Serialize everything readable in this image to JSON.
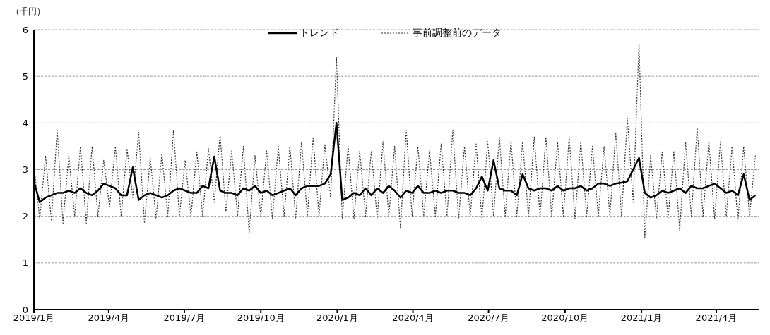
{
  "chart_data": {
    "type": "line",
    "ylabel": "（千円）",
    "x": [
      "2019-01-01",
      "2019-01-08",
      "2019-01-15",
      "2019-01-22",
      "2019-01-29",
      "2019-02-05",
      "2019-02-12",
      "2019-02-19",
      "2019-02-26",
      "2019-03-05",
      "2019-03-12",
      "2019-03-19",
      "2019-03-26",
      "2019-04-02",
      "2019-04-09",
      "2019-04-16",
      "2019-04-23",
      "2019-04-30",
      "2019-05-07",
      "2019-05-14",
      "2019-05-21",
      "2019-05-28",
      "2019-06-04",
      "2019-06-11",
      "2019-06-18",
      "2019-06-25",
      "2019-07-02",
      "2019-07-09",
      "2019-07-16",
      "2019-07-23",
      "2019-07-30",
      "2019-08-06",
      "2019-08-13",
      "2019-08-20",
      "2019-08-27",
      "2019-09-03",
      "2019-09-10",
      "2019-09-17",
      "2019-09-24",
      "2019-10-01",
      "2019-10-08",
      "2019-10-15",
      "2019-10-22",
      "2019-10-29",
      "2019-11-05",
      "2019-11-12",
      "2019-11-19",
      "2019-11-26",
      "2019-12-03",
      "2019-12-10",
      "2019-12-17",
      "2019-12-24",
      "2019-12-31",
      "2020-01-07",
      "2020-01-14",
      "2020-01-21",
      "2020-01-28",
      "2020-02-04",
      "2020-02-11",
      "2020-02-18",
      "2020-02-25",
      "2020-03-03",
      "2020-03-10",
      "2020-03-17",
      "2020-03-24",
      "2020-03-31",
      "2020-04-07",
      "2020-04-14",
      "2020-04-21",
      "2020-04-28",
      "2020-05-05",
      "2020-05-12",
      "2020-05-19",
      "2020-05-26",
      "2020-06-02",
      "2020-06-09",
      "2020-06-16",
      "2020-06-23",
      "2020-06-30",
      "2020-07-07",
      "2020-07-14",
      "2020-07-21",
      "2020-07-28",
      "2020-08-04",
      "2020-08-11",
      "2020-08-18",
      "2020-08-25",
      "2020-09-01",
      "2020-09-08",
      "2020-09-15",
      "2020-09-22",
      "2020-09-29",
      "2020-10-06",
      "2020-10-13",
      "2020-10-20",
      "2020-10-27",
      "2020-11-03",
      "2020-11-10",
      "2020-11-17",
      "2020-11-24",
      "2020-12-01",
      "2020-12-08",
      "2020-12-15",
      "2020-12-22",
      "2020-12-29",
      "2021-01-05",
      "2021-01-12",
      "2021-01-19",
      "2021-01-26",
      "2021-02-02",
      "2021-02-09",
      "2021-02-16",
      "2021-02-23",
      "2021-03-02",
      "2021-03-09",
      "2021-03-16",
      "2021-03-23",
      "2021-03-30",
      "2021-04-06",
      "2021-04-13",
      "2021-04-20",
      "2021-04-27",
      "2021-05-04",
      "2021-05-11",
      "2021-05-18"
    ],
    "series": [
      {
        "name": "トレンド",
        "color": "#000000",
        "line_style": "solid",
        "values": [
          2.75,
          2.3,
          2.4,
          2.45,
          2.5,
          2.5,
          2.55,
          2.5,
          2.6,
          2.5,
          2.45,
          2.55,
          2.7,
          2.65,
          2.6,
          2.45,
          2.45,
          3.05,
          2.35,
          2.45,
          2.5,
          2.45,
          2.4,
          2.45,
          2.55,
          2.6,
          2.55,
          2.5,
          2.5,
          2.65,
          2.6,
          3.28,
          2.55,
          2.5,
          2.5,
          2.45,
          2.6,
          2.55,
          2.65,
          2.5,
          2.55,
          2.45,
          2.5,
          2.55,
          2.6,
          2.45,
          2.6,
          2.65,
          2.65,
          2.65,
          2.7,
          2.9,
          4.0,
          2.35,
          2.4,
          2.5,
          2.45,
          2.6,
          2.45,
          2.6,
          2.5,
          2.65,
          2.55,
          2.4,
          2.55,
          2.5,
          2.65,
          2.5,
          2.5,
          2.55,
          2.5,
          2.55,
          2.55,
          2.5,
          2.5,
          2.45,
          2.6,
          2.85,
          2.55,
          3.2,
          2.6,
          2.55,
          2.55,
          2.45,
          2.9,
          2.6,
          2.55,
          2.6,
          2.6,
          2.55,
          2.65,
          2.55,
          2.6,
          2.6,
          2.65,
          2.55,
          2.6,
          2.7,
          2.7,
          2.65,
          2.7,
          2.72,
          2.75,
          3.0,
          3.25,
          2.5,
          2.4,
          2.45,
          2.55,
          2.5,
          2.55,
          2.6,
          2.5,
          2.65,
          2.6,
          2.6,
          2.65,
          2.7,
          2.6,
          2.5,
          2.55,
          2.45,
          2.9,
          2.35,
          2.45
        ]
      },
      {
        "name": "事前調整前のデータ",
        "color": "#333333",
        "line_style": "dotted",
        "values": [
          3.1,
          1.95,
          3.3,
          1.9,
          3.85,
          1.85,
          3.3,
          2.0,
          3.5,
          1.85,
          3.5,
          2.0,
          3.2,
          2.2,
          3.5,
          2.0,
          3.45,
          2.4,
          3.8,
          1.85,
          3.25,
          1.95,
          3.35,
          2.0,
          3.85,
          2.0,
          3.2,
          2.0,
          3.4,
          2.0,
          3.45,
          2.3,
          3.75,
          2.1,
          3.4,
          2.0,
          3.5,
          1.65,
          3.3,
          2.0,
          3.4,
          1.95,
          3.5,
          2.0,
          3.5,
          1.95,
          3.6,
          2.0,
          3.7,
          2.0,
          3.55,
          2.4,
          5.4,
          1.95,
          3.5,
          1.95,
          3.4,
          2.0,
          3.4,
          1.95,
          3.6,
          2.0,
          3.5,
          1.75,
          3.85,
          2.0,
          3.5,
          2.0,
          3.4,
          2.0,
          3.55,
          2.0,
          3.85,
          1.95,
          3.5,
          2.0,
          3.55,
          1.95,
          3.6,
          2.0,
          3.7,
          2.0,
          3.6,
          2.0,
          3.6,
          2.0,
          3.7,
          2.0,
          3.7,
          2.0,
          3.6,
          2.0,
          3.7,
          1.95,
          3.6,
          2.0,
          3.5,
          2.0,
          3.5,
          2.0,
          3.8,
          2.0,
          4.1,
          2.3,
          5.7,
          1.55,
          3.3,
          1.95,
          3.4,
          1.95,
          3.4,
          1.7,
          3.6,
          2.0,
          3.9,
          2.0,
          3.6,
          1.95,
          3.6,
          2.0,
          3.5,
          1.9,
          3.5,
          2.0,
          3.3
        ]
      }
    ],
    "xlim": [
      "2019-01-01",
      "2021-05-22"
    ],
    "xticks": [
      {
        "value": "2019-01",
        "label": "2019/1月"
      },
      {
        "value": "2019-04",
        "label": "2019/4月"
      },
      {
        "value": "2019-07",
        "label": "2019/7月"
      },
      {
        "value": "2019-10",
        "label": "2019/10月"
      },
      {
        "value": "2020-01",
        "label": "2020/1月"
      },
      {
        "value": "2020-04",
        "label": "2020/4月"
      },
      {
        "value": "2020-07",
        "label": "2020/7月"
      },
      {
        "value": "2020-10",
        "label": "2020/10月"
      },
      {
        "value": "2021-01",
        "label": "2021/1月"
      },
      {
        "value": "2021-04",
        "label": "2021/4月"
      }
    ],
    "ylim": [
      0,
      6
    ],
    "yticks": [
      0,
      1,
      2,
      3,
      4,
      5,
      6
    ],
    "grid": "y",
    "legend": "top",
    "marker": "none"
  }
}
